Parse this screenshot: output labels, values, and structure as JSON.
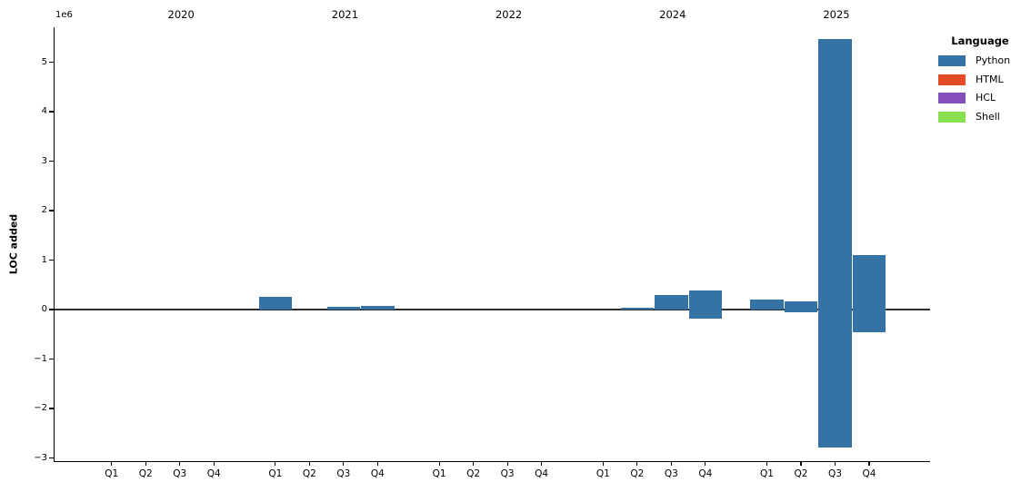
{
  "chart_data": {
    "type": "bar",
    "title": "",
    "ylabel": "LOC added",
    "offset_label": "1e6",
    "unit": "LOC",
    "ylim": [
      -3060000,
      5710000
    ],
    "ytick_values_e6": [
      5,
      4,
      3,
      2,
      1,
      0,
      -1,
      -2,
      -3
    ],
    "grid": false,
    "zero_line": true,
    "years": [
      "2020",
      "2021",
      "2022",
      "2024",
      "2025"
    ],
    "quarters": [
      "Q1",
      "Q2",
      "Q3",
      "Q4"
    ],
    "legend": {
      "title": "Language",
      "position": "upper right",
      "entries": [
        {
          "label": "Python",
          "color": "#3572a5"
        },
        {
          "label": "HTML",
          "color": "#e34c26"
        },
        {
          "label": "HCL",
          "color": "#844fba"
        },
        {
          "label": "Shell",
          "color": "#89e051"
        }
      ]
    },
    "series": [
      {
        "name": "Python",
        "color": "#3572a5",
        "bars": [
          {
            "year": "2021",
            "quarter": "Q1",
            "value_top": 260000,
            "value_bottom": 0
          },
          {
            "year": "2021",
            "quarter": "Q3",
            "value_top": 50000,
            "value_bottom": 0
          },
          {
            "year": "2021",
            "quarter": "Q4",
            "value_top": 80000,
            "value_bottom": 0
          },
          {
            "year": "2024",
            "quarter": "Q2",
            "value_top": 40000,
            "value_bottom": 0
          },
          {
            "year": "2024",
            "quarter": "Q3",
            "value_top": 300000,
            "value_bottom": 0
          },
          {
            "year": "2024",
            "quarter": "Q4",
            "value_top": 380000,
            "value_bottom": -180000
          },
          {
            "year": "2025",
            "quarter": "Q1",
            "value_top": 210000,
            "value_bottom": 0
          },
          {
            "year": "2025",
            "quarter": "Q2",
            "value_top": 170000,
            "value_bottom": -50000
          },
          {
            "year": "2025",
            "quarter": "Q3",
            "value_top": 5460000,
            "value_bottom": -2790000
          },
          {
            "year": "2025",
            "quarter": "Q4",
            "value_top": 1100000,
            "value_bottom": -450000
          }
        ]
      },
      {
        "name": "HTML",
        "color": "#e34c26",
        "bars": []
      },
      {
        "name": "HCL",
        "color": "#844fba",
        "bars": []
      },
      {
        "name": "Shell",
        "color": "#89e051",
        "bars": []
      }
    ]
  }
}
